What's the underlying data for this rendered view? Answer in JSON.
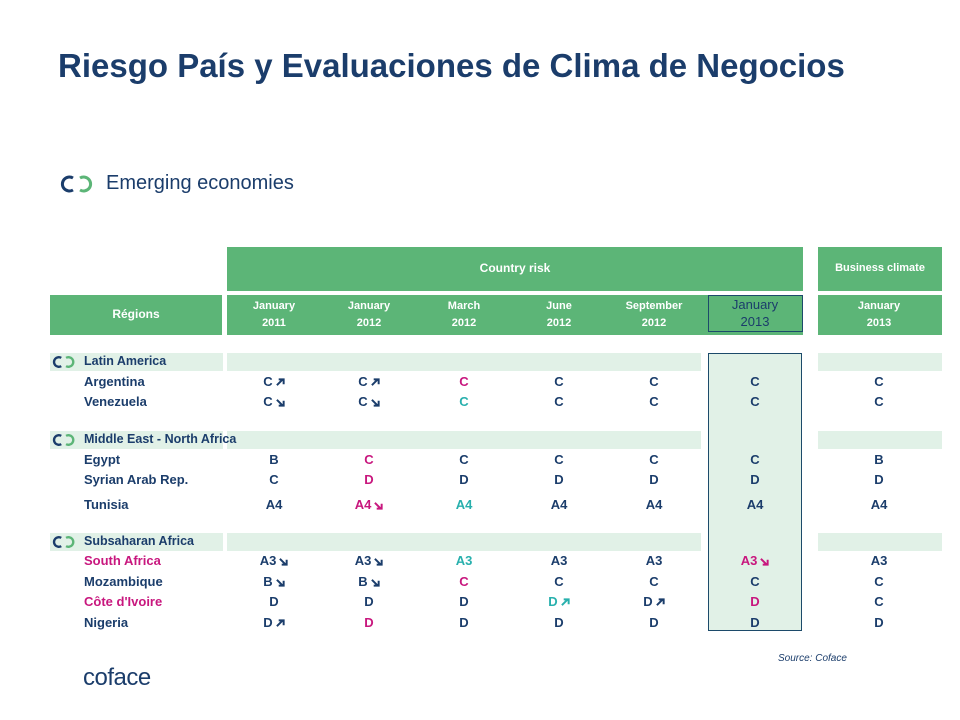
{
  "slide": {
    "title": "Riesgo País y Evaluaciones de Clima de Negocios",
    "subtitle": "Emerging economies",
    "source": "Source: Coface",
    "logo": "coface"
  },
  "colors": {
    "navy": "#1b3d6b",
    "green": "#5cb577",
    "light_green": "#e1f1e7",
    "magenta": "#c8177e",
    "teal": "#28b0ad"
  },
  "table": {
    "group_country_risk": "Country risk",
    "group_business_climate": "Business climate",
    "regions_label": "Régions",
    "columns": [
      {
        "l1": "January",
        "l2": "2011"
      },
      {
        "l1": "January",
        "l2": "2012"
      },
      {
        "l1": "March",
        "l2": "2012"
      },
      {
        "l1": "June",
        "l2": "2012"
      },
      {
        "l1": "September",
        "l2": "2012"
      },
      {
        "l1": "January",
        "l2": "2013"
      },
      {
        "l1": "January",
        "l2": "2013"
      }
    ],
    "sections": [
      {
        "name": "Latin America",
        "rows": [
          {
            "name": "Argentina",
            "name_color": "navy",
            "cells": [
              [
                "C",
                "up",
                "navy"
              ],
              [
                "C",
                "up",
                "navy"
              ],
              [
                "C",
                "",
                "magenta"
              ],
              [
                "C",
                "",
                "navy"
              ],
              [
                "C",
                "",
                "navy"
              ],
              [
                "C",
                "",
                "navy"
              ],
              [
                "C",
                "",
                "navy"
              ]
            ]
          },
          {
            "name": "Venezuela",
            "name_color": "navy",
            "cells": [
              [
                "C",
                "down",
                "navy"
              ],
              [
                "C",
                "down",
                "navy"
              ],
              [
                "C",
                "",
                "teal"
              ],
              [
                "C",
                "",
                "navy"
              ],
              [
                "C",
                "",
                "navy"
              ],
              [
                "C",
                "",
                "navy"
              ],
              [
                "C",
                "",
                "navy"
              ]
            ]
          }
        ]
      },
      {
        "name": "Middle East - North Africa",
        "rows": [
          {
            "name": "Egypt",
            "name_color": "navy",
            "cells": [
              [
                "B",
                "",
                "navy"
              ],
              [
                "C",
                "",
                "magenta"
              ],
              [
                "C",
                "",
                "navy"
              ],
              [
                "C",
                "",
                "navy"
              ],
              [
                "C",
                "",
                "navy"
              ],
              [
                "C",
                "",
                "navy"
              ],
              [
                "B",
                "",
                "navy"
              ]
            ]
          },
          {
            "name": "Syrian Arab Rep.",
            "name_color": "navy",
            "cells": [
              [
                "C",
                "",
                "navy"
              ],
              [
                "D",
                "",
                "magenta"
              ],
              [
                "D",
                "",
                "navy"
              ],
              [
                "D",
                "",
                "navy"
              ],
              [
                "D",
                "",
                "navy"
              ],
              [
                "D",
                "",
                "navy"
              ],
              [
                "D",
                "",
                "navy"
              ]
            ]
          },
          {
            "name": "Tunisia",
            "name_color": "navy",
            "cells": [
              [
                "A4",
                "",
                "navy"
              ],
              [
                "A4",
                "down",
                "magenta"
              ],
              [
                "A4",
                "",
                "teal"
              ],
              [
                "A4",
                "",
                "navy"
              ],
              [
                "A4",
                "",
                "navy"
              ],
              [
                "A4",
                "",
                "navy"
              ],
              [
                "A4",
                "",
                "navy"
              ]
            ]
          }
        ]
      },
      {
        "name": "Subsaharan Africa",
        "rows": [
          {
            "name": "South Africa",
            "name_color": "magenta",
            "cells": [
              [
                "A3",
                "down",
                "navy"
              ],
              [
                "A3",
                "down",
                "navy"
              ],
              [
                "A3",
                "",
                "teal"
              ],
              [
                "A3",
                "",
                "navy"
              ],
              [
                "A3",
                "",
                "navy"
              ],
              [
                "A3",
                "down",
                "magenta"
              ],
              [
                "A3",
                "",
                "navy"
              ]
            ]
          },
          {
            "name": "Mozambique",
            "name_color": "navy",
            "cells": [
              [
                "B",
                "down",
                "navy"
              ],
              [
                "B",
                "down",
                "navy"
              ],
              [
                "C",
                "",
                "magenta"
              ],
              [
                "C",
                "",
                "navy"
              ],
              [
                "C",
                "",
                "navy"
              ],
              [
                "C",
                "",
                "navy"
              ],
              [
                "C",
                "",
                "navy"
              ]
            ]
          },
          {
            "name": "Côte d'Ivoire",
            "name_color": "magenta",
            "cells": [
              [
                "D",
                "",
                "navy"
              ],
              [
                "D",
                "",
                "navy"
              ],
              [
                "D",
                "",
                "navy"
              ],
              [
                "D",
                "up",
                "teal"
              ],
              [
                "D",
                "up",
                "navy"
              ],
              [
                "D",
                "",
                "magenta"
              ],
              [
                "C",
                "",
                "navy"
              ]
            ]
          },
          {
            "name": "Nigeria",
            "name_color": "navy",
            "cells": [
              [
                "D",
                "up",
                "navy"
              ],
              [
                "D",
                "",
                "magenta"
              ],
              [
                "D",
                "",
                "navy"
              ],
              [
                "D",
                "",
                "navy"
              ],
              [
                "D",
                "",
                "navy"
              ],
              [
                "D",
                "",
                "navy"
              ],
              [
                "D",
                "",
                "navy"
              ]
            ]
          }
        ]
      }
    ]
  }
}
